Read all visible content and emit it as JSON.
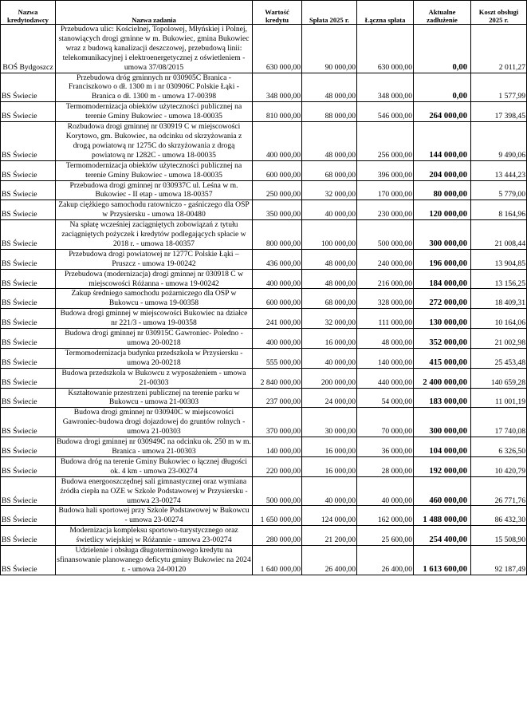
{
  "table": {
    "headers": [
      "Nazwa kredytodawcy",
      "Nazwa zadania",
      "Wartość kredytu",
      "Spłata 2025 r.",
      "Łączna spłata",
      "Aktualne zadłużenie",
      "Koszt obsługi 2025 r."
    ],
    "rows": [
      {
        "lender": "BOŚ Bydgoszcz",
        "task": "Przebudowa ulic: Kościelnej, Topolowej, Młyńskiej i Polnej, stanowiących drogi gminne w m. Bukowiec, gmina Bukowiec wraz z budową kanalizacji deszczowej, przebudową linii: telekomunikacyjnej i elektroenergetycznej z oświetleniem - umowa 37/08/2015",
        "value": "630 000,00",
        "repay2025": "90 000,00",
        "total": "630 000,00",
        "debt": "0,00",
        "cost": "2 011,27"
      },
      {
        "lender": "BS Świecie",
        "task": "Przebudowa dróg gminnych nr 030905C Branica - Franciszkowo o dł. 1300 m i nr 030906C Polskie Łąki - Branica o dł. 1300 m - umowa 17-00398",
        "value": "348 000,00",
        "repay2025": "48 000,00",
        "total": "348 000,00",
        "debt": "0,00",
        "cost": "1 577,99"
      },
      {
        "lender": "BS Świecie",
        "task": "Termomodernizacja obiektów użyteczności publicznej na terenie Gminy Bukowiec - umowa 18-00035",
        "value": "810 000,00",
        "repay2025": "88 000,00",
        "total": "546 000,00",
        "debt": "264 000,00",
        "cost": "17 398,45"
      },
      {
        "lender": "BS Świecie",
        "task": "Rozbudowa drogi gminnej nr 030919 C w miejscowości Korytowo, gm. Bukowiec, na odcinku od skrzyżowania z drogą powiatową nr 1275C do skrzyżowania z drogą powiatową nr 1282C - umowa 18-00035",
        "value": "400 000,00",
        "repay2025": "48 000,00",
        "total": "256 000,00",
        "debt": "144 000,00",
        "cost": "9 490,06"
      },
      {
        "lender": "BS Świecie",
        "task": "Termomodernizacja obiektów użyteczności publicznej na terenie Gminy Bukowiec - umowa 18-00035",
        "value": "600 000,00",
        "repay2025": "68 000,00",
        "total": "396 000,00",
        "debt": "204 000,00",
        "cost": "13 444,23"
      },
      {
        "lender": "BS Świecie",
        "task": "Przebudowa drogi gminnej nr 030937C ul. Leśna w m. Bukowiec - II etap - umowa 18-00357",
        "value": "250 000,00",
        "repay2025": "32 000,00",
        "total": "170 000,00",
        "debt": "80 000,00",
        "cost": "5 779,00"
      },
      {
        "lender": "BS Świecie",
        "task": "Zakup ciężkiego samochodu ratowniczo - gaśniczego dla OSP w Przysiersku - umowa 18-00480",
        "value": "350 000,00",
        "repay2025": "40 000,00",
        "total": "230 000,00",
        "debt": "120 000,00",
        "cost": "8 164,96"
      },
      {
        "lender": "BS Świecie",
        "task": "Na spłatę wcześniej zaciągniętych zobowiązań z tytułu zaciągniętych pożyczek i kredytów podlegających spłacie w 2018 r. - umowa 18-00357",
        "value": "800 000,00",
        "repay2025": "100 000,00",
        "total": "500 000,00",
        "debt": "300 000,00",
        "cost": "21 008,44"
      },
      {
        "lender": "BS Świecie",
        "task": "Przebudowa drogi powiatowej nr 1277C Polskie Łąki – Pruszcz - umowa 19-00242",
        "value": "436 000,00",
        "repay2025": "48 000,00",
        "total": "240 000,00",
        "debt": "196 000,00",
        "cost": "13 904,85"
      },
      {
        "lender": "BS Świecie",
        "task": "Przebudowa (modernizacja) drogi gminnej nr 030918 C w miejscowości Różanna - umowa 19-00242",
        "value": "400 000,00",
        "repay2025": "48 000,00",
        "total": "216 000,00",
        "debt": "184 000,00",
        "cost": "13 156,25"
      },
      {
        "lender": "BS Świecie",
        "task": "Zakup średniego samochodu pożarniczego dla OSP w Bukowcu - umowa 19-00358",
        "value": "600 000,00",
        "repay2025": "68 000,00",
        "total": "328 000,00",
        "debt": "272 000,00",
        "cost": "18 409,31"
      },
      {
        "lender": "BS Świecie",
        "task": "Budowa drogi gminnej w miejscowości Bukowiec na działce nr 221/3 - umowa 19-00358",
        "value": "241 000,00",
        "repay2025": "32 000,00",
        "total": "111 000,00",
        "debt": "130 000,00",
        "cost": "10 164,06"
      },
      {
        "lender": "BS Świecie",
        "task": "Budowa drogi gminnej nr 030915C Gawroniec- Poledno - umowa 20-00218",
        "value": "400 000,00",
        "repay2025": "16 000,00",
        "total": "48 000,00",
        "debt": "352 000,00",
        "cost": "21 002,98"
      },
      {
        "lender": "BS Świecie",
        "task": "Termomodernizacja budynku przedszkola w Przysiersku - umowa 20-00218",
        "value": "555 000,00",
        "repay2025": "40 000,00",
        "total": "140 000,00",
        "debt": "415 000,00",
        "cost": "25 453,48"
      },
      {
        "lender": "BS Świecie",
        "task": "Budowa przedszkola w Bukowcu z wyposażeniem - umowa 21-00303",
        "value": "2 840 000,00",
        "repay2025": "200 000,00",
        "total": "440 000,00",
        "debt": "2 400 000,00",
        "cost": "140 659,28"
      },
      {
        "lender": "BS Świecie",
        "task": "Kształtowanie przestrzeni publicznej na terenie parku w Bukowcu - umowa 21-00303",
        "value": "237 000,00",
        "repay2025": "24 000,00",
        "total": "54 000,00",
        "debt": "183 000,00",
        "cost": "11 001,19"
      },
      {
        "lender": "BS Świecie",
        "task": "Budowa drogi gminnej nr 030940C w miejscowości Gawroniec-budowa drogi dojazdowej do gruntów rolnych - umowa 21-00303",
        "value": "370 000,00",
        "repay2025": "30 000,00",
        "total": "70 000,00",
        "debt": "300 000,00",
        "cost": "17 740,08"
      },
      {
        "lender": "BS Świecie",
        "task": "Budowa drogi gminnej nr 030949C na odcinku ok. 250 m w m. Branica - umowa 21-00303",
        "value": "140 000,00",
        "repay2025": "16 000,00",
        "total": "36 000,00",
        "debt": "104 000,00",
        "cost": "6 326,50"
      },
      {
        "lender": "BS Świecie",
        "task": "Budowa dróg na terenie Gminy Bukowiec o łącznej długości ok. 4 km - umowa 23-00274",
        "value": "220 000,00",
        "repay2025": "16 000,00",
        "total": "28 000,00",
        "debt": "192 000,00",
        "cost": "10 420,79"
      },
      {
        "lender": "BS Świecie",
        "task": "Budowa energooszczędnej sali gimnastycznej oraz wymiana źródła ciepła na OZE w Szkole Podstawowej w Przysiersku - umowa 23-00274",
        "value": "500 000,00",
        "repay2025": "40 000,00",
        "total": "40 000,00",
        "debt": "460 000,00",
        "cost": "26 771,76"
      },
      {
        "lender": "BS Świecie",
        "task": "Budowa hali sportowej przy Szkole Podstawowej w Bukowcu - umowa 23-00274",
        "value": "1 650 000,00",
        "repay2025": "124 000,00",
        "total": "162 000,00",
        "debt": "1 488 000,00",
        "cost": "86 432,30"
      },
      {
        "lender": "BS Świecie",
        "task": "Modernizacja kompleksu sportowo-turystycznego oraz świetlicy wiejskiej w Różannie - umowa 23-00274",
        "value": "280 000,00",
        "repay2025": "21 200,00",
        "total": "25 600,00",
        "debt": "254 400,00",
        "cost": "15 508,90"
      },
      {
        "lender": "BS Świecie",
        "task": "Udzielenie i obsługa długoterminowego kredytu na sfinansowanie planowanego deficytu gminy Bukowiec na 2024 r. - umowa 24-00120",
        "value": "1 640 000,00",
        "repay2025": "26 400,00",
        "total": "26 400,00",
        "debt": "1 613 600,00",
        "cost": "92 187,49"
      }
    ]
  }
}
